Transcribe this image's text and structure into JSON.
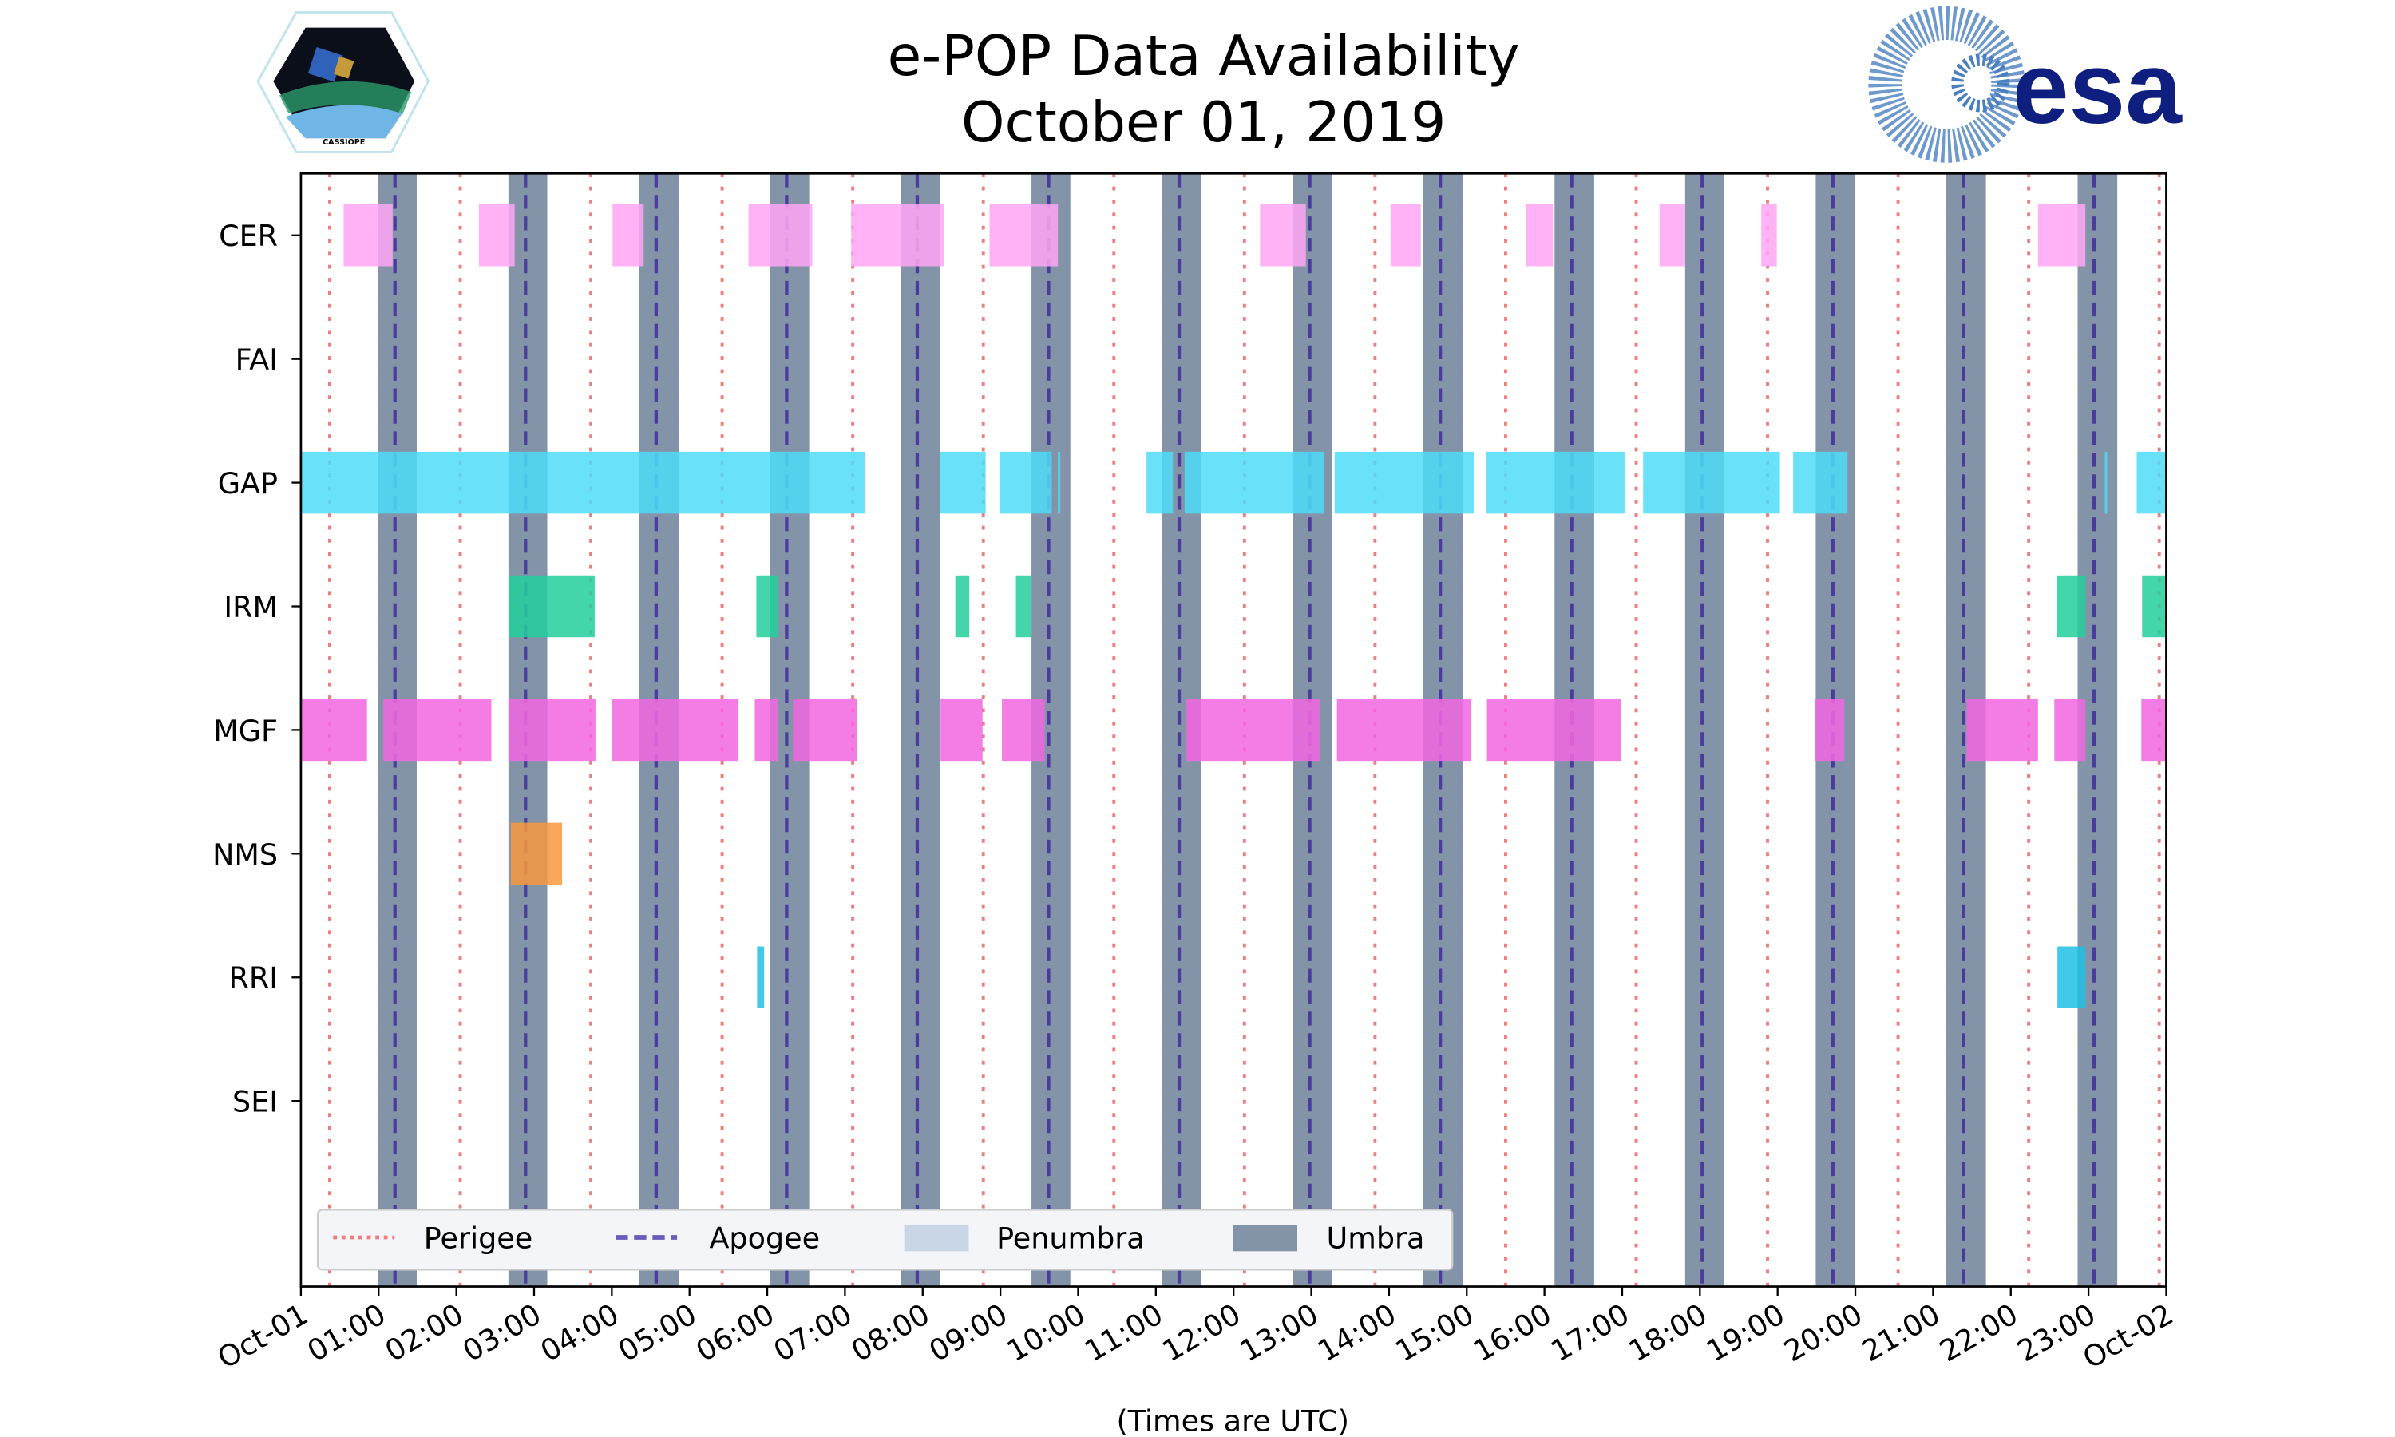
{
  "title_line1": "e-POP Data Availability",
  "title_line2": "October 01, 2019",
  "logos": {
    "left": "CASSIOPE",
    "right": "esa"
  },
  "colors": {
    "perigee": "#f07c7c",
    "apogee": "#4a3c9c",
    "penumbra": "#c8d6e6",
    "umbra": "#8394a8",
    "CER": "#ffa6f5",
    "GAP": "#4ddcf8",
    "IRM": "#22cf9c",
    "MGF": "#f266e0",
    "NMS": "#f7983e",
    "RRI": "#1ec0e4"
  },
  "chart_data": {
    "type": "timeline",
    "title": "e-POP Data Availability — October 01, 2019",
    "xlabel": "(Times are UTC)",
    "xlim_hours": [
      0,
      24
    ],
    "xtick_labels": [
      "Oct-01",
      "01:00",
      "02:00",
      "03:00",
      "04:00",
      "05:00",
      "06:00",
      "07:00",
      "08:00",
      "09:00",
      "10:00",
      "11:00",
      "12:00",
      "13:00",
      "14:00",
      "15:00",
      "16:00",
      "17:00",
      "18:00",
      "19:00",
      "20:00",
      "21:00",
      "22:00",
      "23:00",
      "Oct-02"
    ],
    "instruments": [
      "CER",
      "FAI",
      "GAP",
      "IRM",
      "MGF",
      "NMS",
      "RRI",
      "SEI"
    ],
    "bars_hours": {
      "CER": [
        [
          0.55,
          1.18
        ],
        [
          2.29,
          2.75
        ],
        [
          4.01,
          4.41
        ],
        [
          5.76,
          6.58
        ],
        [
          7.08,
          8.27
        ],
        [
          8.86,
          9.74
        ],
        [
          12.34,
          12.93
        ],
        [
          14.02,
          14.41
        ],
        [
          15.76,
          16.11
        ],
        [
          17.48,
          17.81
        ],
        [
          18.79,
          18.99
        ],
        [
          22.35,
          22.96
        ]
      ],
      "FAI": [],
      "GAP": [
        [
          0,
          7.26
        ],
        [
          8.22,
          8.81
        ],
        [
          8.99,
          9.66
        ],
        [
          9.74,
          9.77
        ],
        [
          10.88,
          11.22
        ],
        [
          11.37,
          13.16
        ],
        [
          13.3,
          15.09
        ],
        [
          15.25,
          17.03
        ],
        [
          17.27,
          19.03
        ],
        [
          19.2,
          19.9
        ],
        [
          23.21,
          23.24
        ],
        [
          23.62,
          24
        ]
      ],
      "IRM": [
        [
          2.68,
          3.78
        ],
        [
          5.86,
          6.14
        ],
        [
          8.42,
          8.6
        ],
        [
          9.2,
          9.39
        ],
        [
          22.59,
          22.96
        ],
        [
          23.69,
          24
        ]
      ],
      "MGF": [
        [
          0,
          0.85
        ],
        [
          1.06,
          2.45
        ],
        [
          2.67,
          3.79
        ],
        [
          4.0,
          5.63
        ],
        [
          5.84,
          6.14
        ],
        [
          6.33,
          7.15
        ],
        [
          8.23,
          8.77
        ],
        [
          9.02,
          9.57
        ],
        [
          11.39,
          13.11
        ],
        [
          13.33,
          15.06
        ],
        [
          15.26,
          16.99
        ],
        [
          19.48,
          19.86
        ],
        [
          21.43,
          22.35
        ],
        [
          22.56,
          22.96
        ],
        [
          23.68,
          24
        ]
      ],
      "NMS": [
        [
          2.7,
          3.36
        ]
      ],
      "RRI": [
        [
          5.87,
          5.96
        ],
        [
          22.6,
          22.96
        ]
      ],
      "SEI": []
    },
    "perigee_hours": [
      0.37,
      2.05,
      3.73,
      5.42,
      7.1,
      8.78,
      10.46,
      12.14,
      13.82,
      15.5,
      17.18,
      18.87,
      20.55,
      22.23,
      23.91
    ],
    "apogee_hours": [
      1.21,
      2.89,
      4.57,
      6.25,
      7.93,
      9.62,
      11.3,
      12.98,
      14.66,
      16.35,
      18.03,
      19.71,
      21.39,
      23.07
    ],
    "umbra_hours": [
      [
        0.99,
        1.49
      ],
      [
        2.67,
        3.17
      ],
      [
        4.35,
        4.86
      ],
      [
        6.03,
        6.54
      ],
      [
        7.72,
        8.22
      ],
      [
        9.4,
        9.9
      ],
      [
        11.08,
        11.58
      ],
      [
        12.76,
        13.27
      ],
      [
        14.44,
        14.95
      ],
      [
        16.13,
        16.64
      ],
      [
        17.81,
        18.31
      ],
      [
        19.49,
        20.0
      ],
      [
        21.17,
        21.68
      ],
      [
        22.86,
        23.37
      ]
    ],
    "penumbra_hours": [],
    "legend": {
      "position": "lower-left",
      "entries": [
        "Perigee",
        "Apogee",
        "Penumbra",
        "Umbra"
      ]
    }
  }
}
